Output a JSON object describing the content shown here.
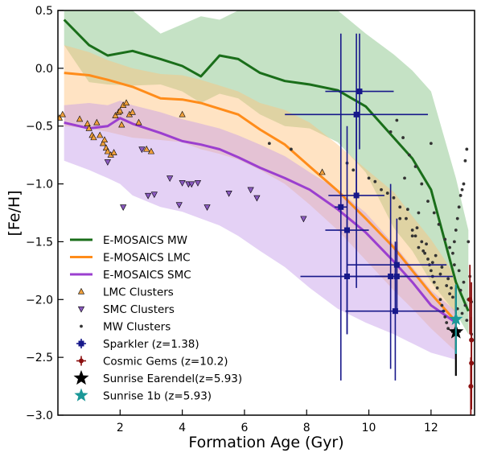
{
  "chart_data": {
    "type": "scatter",
    "title": "",
    "xlabel": "Formation Age (Gyr)",
    "ylabel": "[Fe/H]",
    "xlim": [
      0,
      13.4
    ],
    "ylim": [
      -3.0,
      0.5
    ],
    "xticks": [
      2,
      4,
      6,
      8,
      10,
      12
    ],
    "xtick_labels": [
      "2",
      "4",
      "6",
      "8",
      "10",
      "12"
    ],
    "yticks": [
      0.5,
      0.0,
      -0.5,
      -1.0,
      -1.5,
      -2.0,
      -2.5,
      -3.0
    ],
    "ytick_labels": [
      "0.5",
      "0.0",
      "−0.5",
      "−1.0",
      "−1.5",
      "−2.0",
      "−2.5",
      "−3.0"
    ],
    "grid": false,
    "legend_position": "lower-left",
    "colors": {
      "mw": "#1a6e1a",
      "mw_band": "#7fbf7f",
      "lmc": "#ff8c1a",
      "lmc_band": "#ffc07a",
      "smc": "#9b3fcf",
      "smc_band": "#c39ae8",
      "lmc_clusters": "#f0a03c",
      "smc_clusters": "#8a5abf",
      "mw_clusters": "#333333",
      "sparkler": "#17188a",
      "cosmic_gems": "#8b0f0f",
      "earendel": "#000000",
      "sunrise_1b": "#1b9898"
    },
    "series": [
      {
        "name": "E-MOSAICS MW",
        "kind": "line-band",
        "x": [
          0.2,
          1.0,
          1.6,
          2.4,
          3.3,
          4.0,
          4.6,
          5.2,
          5.8,
          6.5,
          7.3,
          8.1,
          9.0,
          9.9,
          10.8,
          11.4,
          12.0,
          12.8,
          13.2
        ],
        "y": [
          0.42,
          0.2,
          0.11,
          0.15,
          0.08,
          0.02,
          -0.07,
          0.11,
          0.08,
          -0.04,
          -0.11,
          -0.14,
          -0.19,
          -0.33,
          -0.6,
          -0.78,
          -1.05,
          -1.85,
          -2.1
        ],
        "upper": [
          0.5,
          0.5,
          0.5,
          0.5,
          0.3,
          0.38,
          0.45,
          0.42,
          0.5,
          0.5,
          0.5,
          0.5,
          0.5,
          0.3,
          0.12,
          -0.02,
          -0.2,
          -0.95,
          -1.4
        ],
        "lower": [
          0.2,
          -0.12,
          -0.14,
          -0.15,
          -0.14,
          -0.2,
          -0.3,
          -0.22,
          -0.26,
          -0.4,
          -0.5,
          -0.52,
          -0.64,
          -0.9,
          -1.38,
          -1.58,
          -1.85,
          -2.12,
          -2.3
        ]
      },
      {
        "name": "E-MOSAICS LMC",
        "kind": "line-band",
        "x": [
          0.2,
          1.0,
          1.6,
          2.4,
          3.3,
          4.0,
          4.6,
          5.2,
          5.8,
          6.5,
          7.3,
          8.1,
          9.0,
          9.9,
          10.8,
          11.4,
          12.0,
          12.8
        ],
        "y": [
          -0.04,
          -0.06,
          -0.1,
          -0.16,
          -0.26,
          -0.27,
          -0.3,
          -0.35,
          -0.4,
          -0.53,
          -0.66,
          -0.85,
          -1.06,
          -1.3,
          -1.55,
          -1.75,
          -1.95,
          -2.19
        ],
        "upper": [
          0.2,
          0.14,
          0.07,
          0.0,
          -0.05,
          -0.06,
          -0.1,
          -0.15,
          -0.2,
          -0.3,
          -0.36,
          -0.47,
          -0.66,
          -0.87,
          -1.07,
          -1.28,
          -1.48,
          -1.8
        ],
        "lower": [
          -0.5,
          -0.52,
          -0.55,
          -0.6,
          -0.62,
          -0.64,
          -0.7,
          -0.74,
          -0.79,
          -0.88,
          -1.0,
          -1.18,
          -1.4,
          -1.66,
          -1.92,
          -2.08,
          -2.25,
          -2.45
        ]
      },
      {
        "name": "E-MOSAICS SMC",
        "kind": "line-band",
        "x": [
          0.2,
          1.0,
          1.6,
          2.0,
          2.4,
          3.3,
          4.0,
          4.6,
          5.2,
          5.8,
          6.5,
          7.3,
          8.1,
          9.0,
          9.9,
          10.8,
          11.4,
          12.0,
          12.8
        ],
        "y": [
          -0.47,
          -0.52,
          -0.5,
          -0.43,
          -0.48,
          -0.56,
          -0.63,
          -0.66,
          -0.7,
          -0.77,
          -0.86,
          -0.95,
          -1.05,
          -1.22,
          -1.42,
          -1.67,
          -1.85,
          -2.05,
          -2.2
        ],
        "upper": [
          -0.32,
          -0.3,
          -0.32,
          -0.28,
          -0.32,
          -0.38,
          -0.44,
          -0.48,
          -0.52,
          -0.58,
          -0.66,
          -0.76,
          -0.9,
          -1.05,
          -1.25,
          -1.52,
          -1.72,
          -1.92,
          -2.1
        ],
        "lower": [
          -0.8,
          -0.88,
          -0.95,
          -1.0,
          -1.1,
          -1.2,
          -1.24,
          -1.3,
          -1.36,
          -1.45,
          -1.58,
          -1.72,
          -1.9,
          -2.08,
          -2.2,
          -2.3,
          -2.38,
          -2.46,
          -2.52
        ]
      },
      {
        "name": "LMC Clusters",
        "kind": "markers",
        "marker": "triangle-up",
        "x": [
          0.05,
          0.15,
          0.7,
          0.95,
          1.0,
          1.1,
          1.15,
          1.25,
          1.35,
          1.45,
          1.5,
          1.55,
          1.6,
          1.7,
          1.8,
          1.85,
          1.95,
          2.0,
          2.05,
          2.1,
          2.2,
          2.3,
          2.4,
          2.6,
          2.85,
          3.0,
          4.0,
          8.5
        ],
        "y": [
          -0.43,
          -0.4,
          -0.44,
          -0.48,
          -0.52,
          -0.58,
          -0.6,
          -0.47,
          -0.58,
          -0.65,
          -0.62,
          -0.69,
          -0.72,
          -0.75,
          -0.73,
          -0.41,
          -0.38,
          -0.37,
          -0.49,
          -0.32,
          -0.3,
          -0.4,
          -0.38,
          -0.47,
          -0.7,
          -0.72,
          -0.4,
          -0.9
        ]
      },
      {
        "name": "SMC Clusters",
        "kind": "markers",
        "marker": "triangle-down",
        "x": [
          1.6,
          2.1,
          2.7,
          2.9,
          3.1,
          3.6,
          3.9,
          4.0,
          4.2,
          4.3,
          4.5,
          4.8,
          5.5,
          6.2,
          6.4,
          7.9
        ],
        "y": [
          -0.81,
          -1.2,
          -0.7,
          -1.1,
          -1.09,
          -0.95,
          -1.18,
          -0.99,
          -1.0,
          -1.0,
          -0.99,
          -1.2,
          -1.08,
          -1.05,
          -1.12,
          -1.3
        ]
      },
      {
        "name": "MW Clusters",
        "kind": "markers",
        "marker": "dot",
        "x": [
          6.8,
          7.5,
          9.3,
          9.5,
          10.0,
          10.2,
          10.4,
          10.6,
          10.8,
          11.0,
          11.2,
          11.4,
          11.5,
          11.6,
          11.7,
          11.8,
          11.9,
          11.95,
          12.0,
          12.05,
          12.1,
          12.2,
          12.3,
          12.35,
          12.4,
          12.45,
          12.5,
          12.55,
          12.6,
          12.65,
          12.7,
          12.75,
          12.8,
          12.85,
          12.9,
          12.95,
          13.0,
          13.05,
          13.1,
          13.15,
          13.2,
          13.25,
          13.3,
          10.9,
          11.1,
          11.3,
          11.5,
          11.7,
          11.9,
          12.1,
          12.25,
          12.45,
          12.6,
          12.75,
          12.9,
          13.05,
          13.2,
          11.25,
          11.55,
          11.85,
          12.15,
          12.35,
          12.55,
          12.95,
          13.1,
          11.0,
          11.4,
          11.75,
          12.05,
          12.3,
          12.5,
          12.7,
          12.85,
          13.0,
          13.15,
          13.3,
          10.7,
          11.15,
          11.6,
          12.0
        ],
        "y": [
          -0.65,
          -0.7,
          -0.82,
          -0.88,
          -0.95,
          -0.98,
          -1.05,
          -1.08,
          -1.12,
          -1.2,
          -1.3,
          -1.4,
          -1.45,
          -1.55,
          -1.5,
          -1.6,
          -1.65,
          -1.7,
          -1.75,
          -1.8,
          -1.85,
          -1.9,
          -2.0,
          -2.05,
          -2.1,
          -2.15,
          -2.2,
          -2.25,
          -1.95,
          -1.9,
          -1.6,
          -1.5,
          -1.4,
          -1.3,
          -1.2,
          -1.1,
          -1.05,
          -1.0,
          -0.8,
          -0.7,
          -1.5,
          -1.8,
          -2.3,
          -0.45,
          -0.6,
          -0.75,
          -0.85,
          -1.0,
          -1.15,
          -1.25,
          -1.35,
          -1.48,
          -1.55,
          -1.7,
          -1.75,
          -1.85,
          -2.0,
          -1.22,
          -1.38,
          -1.52,
          -1.62,
          -1.72,
          -1.82,
          -1.92,
          -2.05,
          -1.3,
          -1.45,
          -1.58,
          -1.68,
          -1.78,
          -1.88,
          -1.98,
          -2.08,
          -2.12,
          -2.18,
          -2.02,
          -0.55,
          -0.95,
          -1.25,
          -0.65
        ]
      },
      {
        "name": "Sparkler (z=1.38)",
        "kind": "errorbars",
        "marker": "square",
        "points": [
          {
            "x": 9.7,
            "y": -0.2,
            "xerr": 1.1,
            "yerr": 0.5
          },
          {
            "x": 9.6,
            "y": -0.4,
            "xerr": 2.3,
            "yerr": 0.7
          },
          {
            "x": 9.6,
            "y": -1.1,
            "xerr": 0.9,
            "yerr": 0.8
          },
          {
            "x": 9.1,
            "y": -1.2,
            "xerr": 0.2,
            "yerr": 1.5
          },
          {
            "x": 9.3,
            "y": -1.4,
            "xerr": 0.7,
            "yerr": 0.9
          },
          {
            "x": 9.3,
            "y": -1.8,
            "xerr": 1.5,
            "yerr": 0.5
          },
          {
            "x": 10.9,
            "y": -1.7,
            "xerr": 1.6,
            "yerr": 0.4
          },
          {
            "x": 10.9,
            "y": -1.8,
            "xerr": 1.8,
            "yerr": 0.3
          },
          {
            "x": 10.7,
            "y": -1.8,
            "xerr": 0.5,
            "yerr": 0.8
          },
          {
            "x": 10.85,
            "y": -2.1,
            "xerr": 1.6,
            "yerr": 0.6
          }
        ]
      },
      {
        "name": "Cosmic Gems (z=10.2)",
        "kind": "errorbars",
        "marker": "plus",
        "points": [
          {
            "x": 13.25,
            "y": -2.0,
            "xerr": 0.05,
            "yerr": 0.3
          },
          {
            "x": 13.3,
            "y": -2.35,
            "xerr": 0.05,
            "yerr": 0.5
          },
          {
            "x": 13.3,
            "y": -2.55,
            "xerr": 0.05,
            "yerr": 0.4
          },
          {
            "x": 13.28,
            "y": -2.75,
            "xerr": 0.05,
            "yerr": 0.25
          }
        ]
      },
      {
        "name": "Sunrise Earendel(z=5.93)",
        "kind": "errorbars",
        "marker": "star",
        "points": [
          {
            "x": 12.8,
            "y": -2.28,
            "xerr": 0.15,
            "yerr": 0.38
          }
        ]
      },
      {
        "name": "Sunrise 1b (z=5.93)",
        "kind": "errorbars",
        "marker": "star",
        "points": [
          {
            "x": 12.8,
            "y": -2.17,
            "xerr": 0.12,
            "yerr": 0.3
          }
        ]
      }
    ]
  }
}
